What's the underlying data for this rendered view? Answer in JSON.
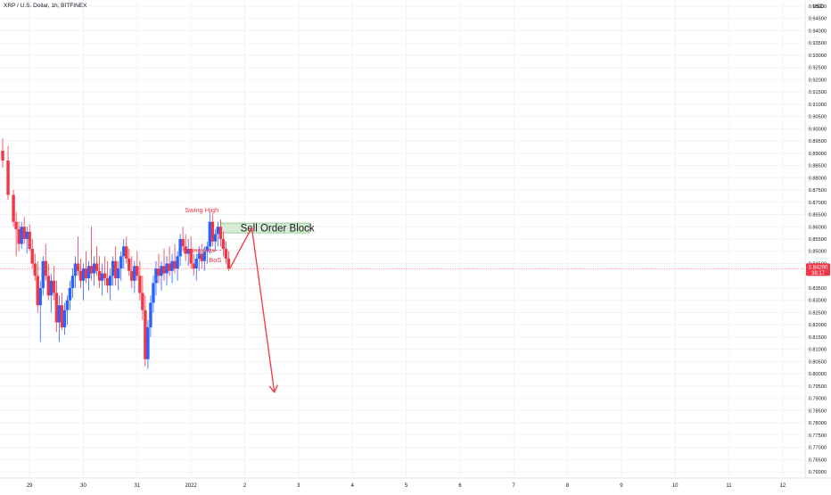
{
  "chart_data": {
    "type": "candlestick",
    "symbol_title": "XRP / U.S. Dollar, 1h, BITFINEX",
    "currency_label": "USD",
    "y_range": [
      0.7575,
      0.9525
    ],
    "y_ticks": [
      "0.95000",
      "0.94500",
      "0.94000",
      "0.93500",
      "0.93000",
      "0.92500",
      "0.92000",
      "0.91500",
      "0.91000",
      "0.90500",
      "0.90000",
      "0.89500",
      "0.89000",
      "0.88500",
      "0.88000",
      "0.87500",
      "0.87000",
      "0.86500",
      "0.86000",
      "0.85500",
      "0.85000",
      "0.84500",
      "0.83500",
      "0.83000",
      "0.82500",
      "0.82000",
      "0.81500",
      "0.81000",
      "0.80500",
      "0.80000",
      "0.79500",
      "0.79000",
      "0.78500",
      "0.78000",
      "0.77500",
      "0.77000",
      "0.76500",
      "0.76000"
    ],
    "x_ticks": [
      "29",
      "30",
      "31",
      "2022",
      "2",
      "3",
      "4",
      "5",
      "6",
      "7",
      "8",
      "9",
      "10",
      "11",
      "12"
    ],
    "x_tick_index": [
      0,
      1,
      2,
      3,
      4,
      5,
      6,
      7,
      8,
      9,
      10,
      11,
      12,
      13,
      14
    ],
    "x_range_days": [
      -0.55,
      14.4
    ],
    "last_price": {
      "value": 0.8429,
      "label": "0.84290",
      "countdown": "38:17",
      "color": "#f23645"
    },
    "candles": [
      [
        -0.7,
        0.889,
        0.8925,
        0.88,
        0.884
      ],
      [
        -0.6,
        0.884,
        0.895,
        0.879,
        0.891
      ],
      [
        -0.5,
        0.891,
        0.896,
        0.884,
        0.887
      ],
      [
        -0.4,
        0.887,
        0.893,
        0.871,
        0.873
      ],
      [
        -0.3,
        0.873,
        0.875,
        0.86,
        0.862
      ],
      [
        -0.25,
        0.862,
        0.866,
        0.848,
        0.859
      ],
      [
        -0.2,
        0.859,
        0.862,
        0.85,
        0.853
      ],
      [
        -0.15,
        0.853,
        0.862,
        0.851,
        0.86
      ],
      [
        -0.1,
        0.86,
        0.864,
        0.853,
        0.855
      ],
      [
        -0.05,
        0.855,
        0.86,
        0.849,
        0.858
      ],
      [
        0.0,
        0.858,
        0.861,
        0.85,
        0.851
      ],
      [
        0.05,
        0.851,
        0.855,
        0.843,
        0.845
      ],
      [
        0.1,
        0.845,
        0.849,
        0.838,
        0.84
      ],
      [
        0.15,
        0.84,
        0.846,
        0.825,
        0.828
      ],
      [
        0.2,
        0.828,
        0.838,
        0.813,
        0.835
      ],
      [
        0.25,
        0.835,
        0.848,
        0.832,
        0.846
      ],
      [
        0.3,
        0.846,
        0.853,
        0.838,
        0.84
      ],
      [
        0.35,
        0.84,
        0.845,
        0.83,
        0.832
      ],
      [
        0.4,
        0.832,
        0.841,
        0.825,
        0.838
      ],
      [
        0.45,
        0.838,
        0.844,
        0.83,
        0.833
      ],
      [
        0.5,
        0.833,
        0.838,
        0.817,
        0.821
      ],
      [
        0.55,
        0.821,
        0.832,
        0.813,
        0.828
      ],
      [
        0.6,
        0.828,
        0.833,
        0.818,
        0.819
      ],
      [
        0.65,
        0.819,
        0.829,
        0.816,
        0.826
      ],
      [
        0.7,
        0.826,
        0.832,
        0.82,
        0.83
      ],
      [
        0.75,
        0.83,
        0.838,
        0.826,
        0.835
      ],
      [
        0.8,
        0.835,
        0.843,
        0.831,
        0.84
      ],
      [
        0.85,
        0.84,
        0.848,
        0.835,
        0.845
      ],
      [
        0.9,
        0.845,
        0.856,
        0.84,
        0.842
      ],
      [
        0.95,
        0.842,
        0.847,
        0.835,
        0.838
      ],
      [
        1.0,
        0.838,
        0.845,
        0.83,
        0.843
      ],
      [
        1.05,
        0.843,
        0.85,
        0.837,
        0.839
      ],
      [
        1.1,
        0.839,
        0.846,
        0.834,
        0.844
      ],
      [
        1.15,
        0.844,
        0.86,
        0.838,
        0.841
      ],
      [
        1.2,
        0.841,
        0.848,
        0.836,
        0.845
      ],
      [
        1.25,
        0.845,
        0.852,
        0.84,
        0.842
      ],
      [
        1.3,
        0.842,
        0.848,
        0.835,
        0.838
      ],
      [
        1.35,
        0.838,
        0.845,
        0.832,
        0.841
      ],
      [
        1.4,
        0.841,
        0.848,
        0.836,
        0.839
      ],
      [
        1.45,
        0.839,
        0.846,
        0.833,
        0.836
      ],
      [
        1.5,
        0.836,
        0.843,
        0.83,
        0.84
      ],
      [
        1.55,
        0.84,
        0.848,
        0.836,
        0.846
      ],
      [
        1.6,
        0.846,
        0.852,
        0.836,
        0.839
      ],
      [
        1.65,
        0.839,
        0.846,
        0.834,
        0.843
      ],
      [
        1.7,
        0.843,
        0.85,
        0.838,
        0.848
      ],
      [
        1.75,
        0.848,
        0.855,
        0.843,
        0.852
      ],
      [
        1.8,
        0.852,
        0.856,
        0.845,
        0.847
      ],
      [
        1.85,
        0.847,
        0.851,
        0.84,
        0.842
      ],
      [
        1.9,
        0.842,
        0.848,
        0.835,
        0.838
      ],
      [
        1.95,
        0.838,
        0.846,
        0.833,
        0.844
      ],
      [
        2.0,
        0.844,
        0.85,
        0.838,
        0.84
      ],
      [
        2.05,
        0.84,
        0.846,
        0.83,
        0.833
      ],
      [
        2.1,
        0.833,
        0.84,
        0.822,
        0.826
      ],
      [
        2.15,
        0.826,
        0.832,
        0.803,
        0.806
      ],
      [
        2.2,
        0.806,
        0.822,
        0.802,
        0.819
      ],
      [
        2.25,
        0.819,
        0.832,
        0.815,
        0.829
      ],
      [
        2.3,
        0.829,
        0.84,
        0.825,
        0.837
      ],
      [
        2.35,
        0.837,
        0.846,
        0.832,
        0.843
      ],
      [
        2.4,
        0.843,
        0.849,
        0.837,
        0.84
      ],
      [
        2.45,
        0.84,
        0.846,
        0.834,
        0.844
      ],
      [
        2.5,
        0.844,
        0.851,
        0.838,
        0.841
      ],
      [
        2.55,
        0.841,
        0.848,
        0.836,
        0.845
      ],
      [
        2.6,
        0.845,
        0.852,
        0.84,
        0.842
      ],
      [
        2.65,
        0.842,
        0.849,
        0.837,
        0.846
      ],
      [
        2.7,
        0.846,
        0.853,
        0.841,
        0.843
      ],
      [
        2.75,
        0.843,
        0.85,
        0.838,
        0.848
      ],
      [
        2.8,
        0.848,
        0.857,
        0.844,
        0.855
      ],
      [
        2.85,
        0.855,
        0.86,
        0.85,
        0.852
      ],
      [
        2.9,
        0.852,
        0.857,
        0.846,
        0.849
      ],
      [
        2.95,
        0.849,
        0.855,
        0.844,
        0.851
      ],
      [
        3.0,
        0.851,
        0.856,
        0.843,
        0.845
      ],
      [
        3.05,
        0.845,
        0.849,
        0.84,
        0.843
      ],
      [
        3.1,
        0.843,
        0.849,
        0.838,
        0.847
      ],
      [
        3.15,
        0.847,
        0.852,
        0.842,
        0.849
      ],
      [
        3.2,
        0.849,
        0.853,
        0.843,
        0.846
      ],
      [
        3.25,
        0.846,
        0.852,
        0.842,
        0.85
      ],
      [
        3.3,
        0.85,
        0.854,
        0.845,
        0.852
      ],
      [
        3.35,
        0.852,
        0.866,
        0.849,
        0.862
      ],
      [
        3.4,
        0.862,
        0.865,
        0.852,
        0.854
      ],
      [
        3.45,
        0.854,
        0.859,
        0.85,
        0.857
      ],
      [
        3.5,
        0.857,
        0.862,
        0.852,
        0.86
      ],
      [
        3.55,
        0.86,
        0.863,
        0.852,
        0.855
      ],
      [
        3.6,
        0.855,
        0.858,
        0.848,
        0.851
      ],
      [
        3.65,
        0.851,
        0.854,
        0.845,
        0.847
      ],
      [
        3.7,
        0.847,
        0.85,
        0.842,
        0.8429
      ]
    ],
    "sell_order_block": {
      "label": "Sell Order Block",
      "x": [
        3.55,
        5.2
      ],
      "y": [
        0.8575,
        0.8615
      ],
      "color": "#c8e6c9",
      "border": "#81c784"
    },
    "annotations": [
      {
        "text": "Swing High",
        "x": 3.2,
        "y": 0.866,
        "color": "#f23645"
      },
      {
        "text": "Swing Low",
        "x": 3.15,
        "y": 0.8495,
        "color": "#f23645"
      },
      {
        "text": "BoS",
        "x": 3.45,
        "y": 0.8455,
        "color": "#f23645"
      }
    ],
    "bos_line": {
      "x": [
        3.0,
        3.6
      ],
      "y": 0.8505
    },
    "projection_path": [
      [
        3.72,
        0.8429
      ],
      [
        4.13,
        0.8597
      ],
      [
        4.55,
        0.7925
      ]
    ],
    "colors": {
      "up": "#2962ff",
      "down": "#f23645"
    }
  }
}
